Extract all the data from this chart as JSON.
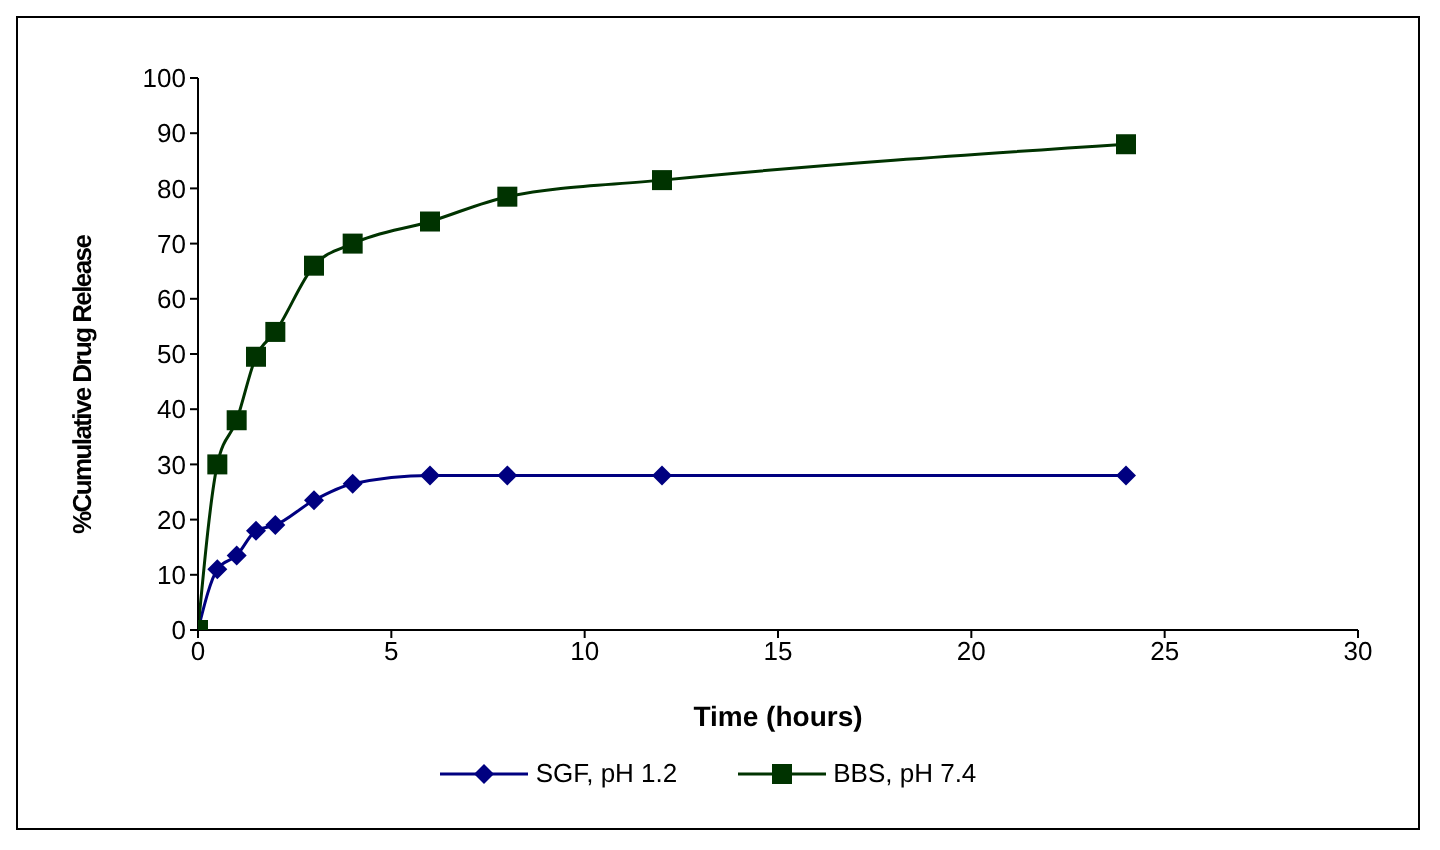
{
  "chart_data": {
    "type": "line",
    "xlabel": "Time (hours)",
    "ylabel": "%Cumulative Drug Release",
    "x": [
      0,
      0.5,
      1,
      1.5,
      2,
      3,
      4,
      6,
      8,
      12,
      24
    ],
    "series": [
      {
        "name": "SGF, pH 1.2",
        "color": "#000080",
        "marker": "diamond",
        "values": [
          0,
          11,
          13.5,
          18,
          19,
          23.5,
          26.5,
          28,
          28,
          28,
          28
        ]
      },
      {
        "name": "BBS, pH 7.4",
        "color": "#003300",
        "marker": "square",
        "values": [
          0,
          30,
          38,
          49.5,
          54,
          66,
          70,
          74,
          78.5,
          81.5,
          88
        ]
      }
    ],
    "xlim": [
      0,
      30
    ],
    "xticks": [
      0,
      5,
      10,
      15,
      20,
      25,
      30
    ],
    "ylim": [
      0,
      100
    ],
    "yticks": [
      0,
      10,
      20,
      30,
      40,
      50,
      60,
      70,
      80,
      90,
      100
    ],
    "grid": false,
    "legend": "bottom",
    "line_style": "solid"
  }
}
